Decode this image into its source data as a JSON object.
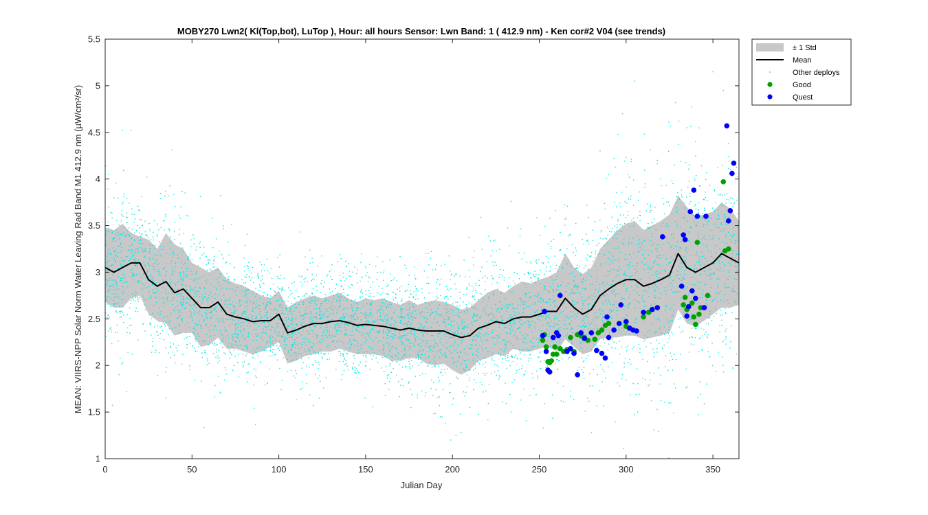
{
  "chart_data": {
    "type": "scatter",
    "title": "MOBY270   Lwn2( Kl(Top,bot), LuTop ),   Hour: all hours  Sensor: Lwn Band: 1 ( 412.9 nm)  - Ken cor#2 V04 (see trends)",
    "xlabel": "Julian Day",
    "ylabel": "MEAN: VIIRS-NPP Solar Norm Water Leaving Rad Band M1 412.9 nm (µW/cm²/sr)",
    "xlim": [
      0,
      365
    ],
    "ylim": [
      1,
      5.5
    ],
    "x_ticks": [
      0,
      50,
      100,
      150,
      200,
      250,
      300,
      350
    ],
    "y_ticks": [
      1,
      1.5,
      2,
      2.5,
      3,
      3.5,
      4,
      4.5,
      5,
      5.5
    ],
    "grid": false,
    "legend_position": "outside-top-right",
    "legend": [
      {
        "label": "± 1 Std",
        "kind": "band",
        "color": "#c8c8c8"
      },
      {
        "label": "Mean",
        "kind": "line",
        "color": "#000000"
      },
      {
        "label": "Other deploys",
        "kind": "dot",
        "color": "#00e5e5"
      },
      {
        "label": "Good",
        "kind": "marker",
        "color": "#00a000"
      },
      {
        "label": "Quest",
        "kind": "marker",
        "color": "#0000ff"
      }
    ],
    "mean_line": {
      "name": "Mean",
      "x": [
        0,
        5,
        10,
        15,
        20,
        25,
        30,
        35,
        40,
        45,
        50,
        55,
        60,
        65,
        70,
        75,
        80,
        85,
        90,
        95,
        100,
        105,
        110,
        115,
        120,
        125,
        130,
        135,
        140,
        145,
        150,
        155,
        160,
        165,
        170,
        175,
        180,
        185,
        190,
        195,
        200,
        205,
        210,
        215,
        220,
        225,
        230,
        235,
        240,
        245,
        250,
        255,
        260,
        265,
        270,
        275,
        280,
        285,
        290,
        295,
        300,
        305,
        310,
        315,
        320,
        325,
        330,
        335,
        340,
        345,
        350,
        355,
        360,
        365
      ],
      "y": [
        3.05,
        3.0,
        3.05,
        3.1,
        3.1,
        2.92,
        2.85,
        2.9,
        2.78,
        2.82,
        2.72,
        2.62,
        2.62,
        2.68,
        2.55,
        2.52,
        2.5,
        2.47,
        2.48,
        2.48,
        2.55,
        2.35,
        2.38,
        2.42,
        2.45,
        2.45,
        2.47,
        2.48,
        2.46,
        2.43,
        2.44,
        2.43,
        2.42,
        2.4,
        2.38,
        2.4,
        2.38,
        2.37,
        2.37,
        2.37,
        2.33,
        2.3,
        2.32,
        2.4,
        2.43,
        2.47,
        2.45,
        2.5,
        2.52,
        2.52,
        2.55,
        2.58,
        2.58,
        2.72,
        2.62,
        2.55,
        2.6,
        2.75,
        2.82,
        2.88,
        2.92,
        2.92,
        2.85,
        2.88,
        2.92,
        2.97,
        3.2,
        3.05,
        3.0,
        3.05,
        3.1,
        3.2,
        3.15,
        3.1
      ]
    },
    "std_band": {
      "name": "± 1 Std",
      "x": [
        0,
        5,
        10,
        15,
        20,
        25,
        30,
        35,
        40,
        45,
        50,
        55,
        60,
        65,
        70,
        75,
        80,
        85,
        90,
        95,
        100,
        105,
        110,
        115,
        120,
        125,
        130,
        135,
        140,
        145,
        150,
        155,
        160,
        165,
        170,
        175,
        180,
        185,
        190,
        195,
        200,
        205,
        210,
        215,
        220,
        225,
        230,
        235,
        240,
        245,
        250,
        255,
        260,
        265,
        270,
        275,
        280,
        285,
        290,
        295,
        300,
        305,
        310,
        315,
        320,
        325,
        330,
        335,
        340,
        345,
        350,
        355,
        360,
        365
      ],
      "upper": [
        3.48,
        3.45,
        3.52,
        3.42,
        3.38,
        3.35,
        3.25,
        3.42,
        3.3,
        3.25,
        3.1,
        3.05,
        3.0,
        3.05,
        2.92,
        2.88,
        2.85,
        2.8,
        2.75,
        2.72,
        2.8,
        2.62,
        2.68,
        2.72,
        2.75,
        2.72,
        2.75,
        2.78,
        2.72,
        2.68,
        2.72,
        2.7,
        2.72,
        2.68,
        2.65,
        2.7,
        2.65,
        2.68,
        2.7,
        2.68,
        2.65,
        2.6,
        2.62,
        2.7,
        2.78,
        2.82,
        2.78,
        2.85,
        2.9,
        2.88,
        2.92,
        2.95,
        3.0,
        3.2,
        3.05,
        2.98,
        3.05,
        3.25,
        3.35,
        3.45,
        3.52,
        3.55,
        3.45,
        3.5,
        3.55,
        3.62,
        3.82,
        3.7,
        3.6,
        3.62,
        3.65,
        3.75,
        3.68,
        3.55
      ],
      "lower": [
        2.68,
        2.62,
        2.62,
        2.72,
        2.75,
        2.55,
        2.48,
        2.45,
        2.32,
        2.35,
        2.35,
        2.2,
        2.22,
        2.3,
        2.18,
        2.18,
        2.15,
        2.12,
        2.15,
        2.2,
        2.25,
        2.02,
        2.05,
        2.1,
        2.12,
        2.15,
        2.15,
        2.18,
        2.15,
        2.12,
        2.12,
        2.12,
        2.1,
        2.05,
        2.05,
        2.08,
        2.08,
        2.02,
        2.0,
        2.02,
        1.95,
        1.9,
        1.95,
        2.05,
        2.08,
        2.12,
        2.1,
        2.18,
        2.15,
        2.15,
        2.18,
        2.2,
        2.15,
        2.28,
        2.2,
        2.12,
        2.15,
        2.28,
        2.3,
        2.3,
        2.32,
        2.32,
        2.28,
        2.3,
        2.32,
        2.35,
        2.6,
        2.45,
        2.42,
        2.48,
        2.55,
        2.62,
        2.62,
        2.65
      ]
    },
    "other_deploys": {
      "name": "Other deploys",
      "color": "#00e5e5",
      "spread_std_ratio": 1.0,
      "extra_points": [
        {
          "x": 10,
          "y": 4.52
        },
        {
          "x": 15,
          "y": 4.52
        },
        {
          "x": 24,
          "y": 4.02
        },
        {
          "x": 2,
          "y": 4.05
        },
        {
          "x": 46,
          "y": 3.85
        },
        {
          "x": 285,
          "y": 4.3
        },
        {
          "x": 298,
          "y": 4.7
        },
        {
          "x": 305,
          "y": 5.05
        },
        {
          "x": 350,
          "y": 5.15
        },
        {
          "x": 356,
          "y": 4.95
        },
        {
          "x": 199,
          "y": 1.2
        },
        {
          "x": 202,
          "y": 1.25
        },
        {
          "x": 193,
          "y": 1.45
        },
        {
          "x": 196,
          "y": 1.38
        },
        {
          "x": 205,
          "y": 1.28
        },
        {
          "x": 35,
          "y": 1.65
        },
        {
          "x": 120,
          "y": 1.57
        },
        {
          "x": 8,
          "y": 1.9
        },
        {
          "x": 335,
          "y": 4.55
        },
        {
          "x": 340,
          "y": 4.4
        },
        {
          "x": 360,
          "y": 4.1
        },
        {
          "x": 318,
          "y": 4.2
        },
        {
          "x": 327,
          "y": 3.95
        },
        {
          "x": 210,
          "y": 1.55
        }
      ]
    },
    "good": {
      "name": "Good",
      "color": "#00a000",
      "x": [
        252,
        253,
        254,
        255,
        256,
        257,
        258,
        259,
        260,
        262,
        264,
        266,
        268,
        270,
        272,
        274,
        276,
        278,
        282,
        284,
        286,
        288,
        290,
        300,
        310,
        313,
        333,
        334,
        335,
        338,
        339,
        340,
        341,
        342,
        343,
        347,
        356,
        357,
        359
      ],
      "y": [
        2.27,
        2.33,
        2.2,
        2.04,
        2.03,
        2.05,
        2.12,
        2.2,
        2.12,
        2.18,
        2.15,
        2.17,
        2.3,
        2.15,
        2.33,
        2.32,
        2.3,
        2.27,
        2.28,
        2.35,
        2.38,
        2.43,
        2.45,
        2.42,
        2.52,
        2.57,
        2.65,
        2.73,
        2.6,
        2.67,
        2.52,
        2.44,
        3.32,
        2.55,
        2.62,
        2.75,
        3.97,
        3.23,
        3.25
      ]
    },
    "quest": {
      "name": "Quest",
      "color": "#0000ff",
      "x": [
        252,
        253,
        254,
        255,
        256,
        258,
        260,
        261,
        262,
        266,
        268,
        270,
        272,
        274,
        276,
        280,
        283,
        286,
        288,
        289,
        290,
        293,
        296,
        297,
        300,
        302,
        304,
        306,
        310,
        315,
        318,
        321,
        332,
        333,
        334,
        335,
        336,
        337,
        338,
        339,
        340,
        341,
        345,
        346,
        358,
        359,
        360,
        361,
        362
      ],
      "y": [
        2.32,
        2.58,
        2.15,
        1.95,
        1.93,
        2.3,
        2.35,
        2.32,
        2.75,
        2.15,
        2.18,
        2.13,
        1.9,
        2.35,
        2.29,
        2.35,
        2.16,
        2.13,
        2.08,
        2.52,
        2.3,
        2.38,
        2.45,
        2.65,
        2.47,
        2.4,
        2.38,
        2.37,
        2.57,
        2.6,
        2.62,
        3.38,
        2.85,
        3.4,
        3.35,
        2.53,
        2.63,
        3.65,
        2.8,
        3.88,
        2.72,
        3.6,
        2.62,
        3.6,
        4.57,
        3.55,
        3.66,
        4.06,
        4.17
      ]
    }
  }
}
